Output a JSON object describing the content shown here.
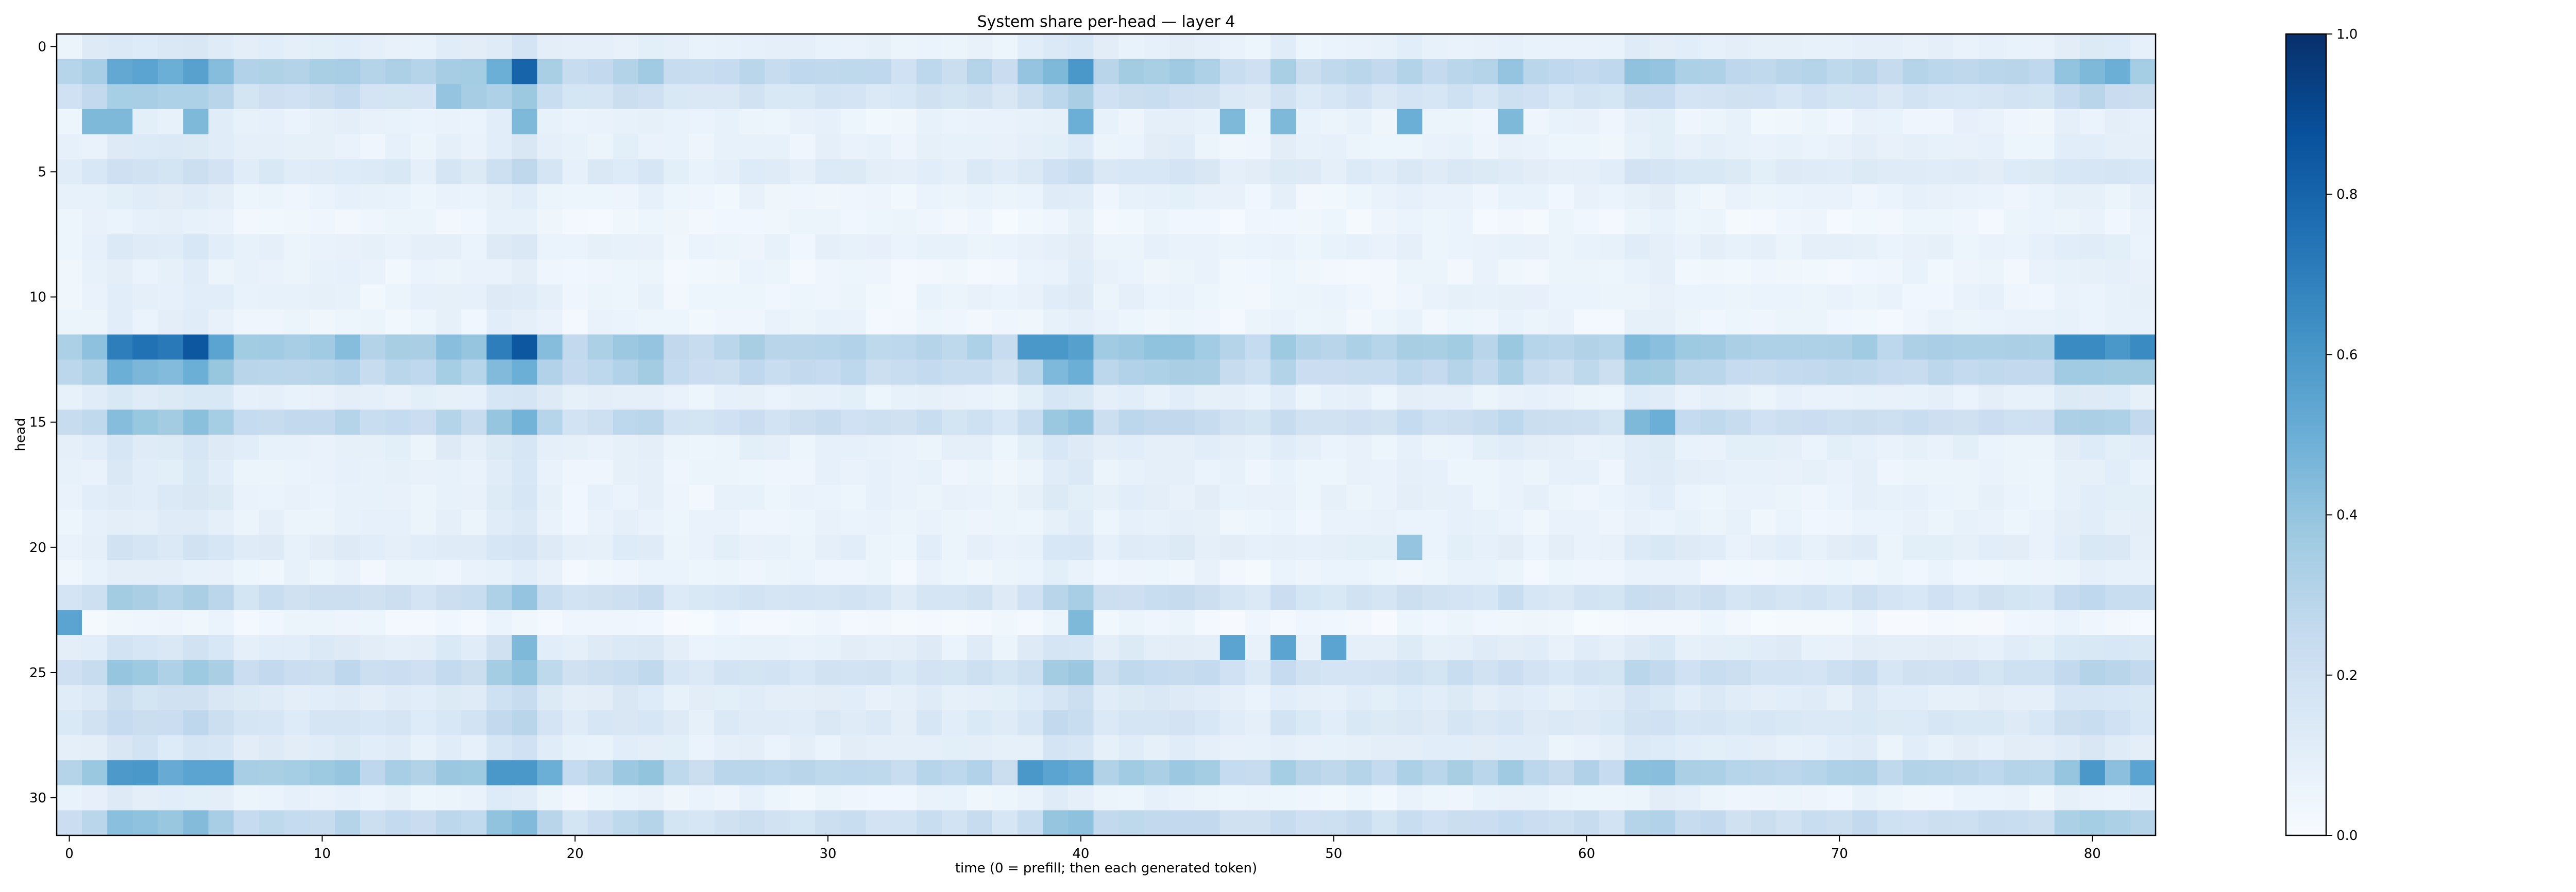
{
  "chart_data": {
    "type": "heatmap",
    "title": "System share per-head — layer 4",
    "xlabel": "time (0 = prefill; then each generated token)",
    "ylabel": "head",
    "n_rows": 32,
    "n_cols": 83,
    "xlim": [
      -0.5,
      82.5
    ],
    "ylim": [
      31.5,
      -0.5
    ],
    "x_ticks": [
      0,
      10,
      20,
      30,
      40,
      50,
      60,
      70,
      80
    ],
    "y_ticks": [
      0,
      5,
      10,
      15,
      20,
      25,
      30
    ],
    "colormap": "Blues",
    "colorbar": {
      "min": 0.0,
      "max": 1.0,
      "ticks": [
        0.0,
        0.2,
        0.4,
        0.6,
        0.8,
        1.0
      ],
      "tick_labels": [
        "0.0",
        "0.2",
        "0.4",
        "0.6",
        "0.8",
        "1.0"
      ]
    },
    "row_base": [
      0.08,
      0.28,
      0.18,
      0.06,
      0.07,
      0.12,
      0.06,
      0.04,
      0.07,
      0.05,
      0.06,
      0.05,
      0.32,
      0.26,
      0.08,
      0.22,
      0.08,
      0.07,
      0.07,
      0.06,
      0.09,
      0.05,
      0.18,
      0.03,
      0.1,
      0.2,
      0.11,
      0.14,
      0.09,
      0.3,
      0.06,
      0.22
    ],
    "col_factor": [
      1.0,
      1.3,
      1.9,
      1.8,
      1.7,
      1.9,
      1.6,
      1.1,
      1.2,
      1.1,
      1.2,
      1.3,
      1.0,
      1.1,
      1.0,
      1.3,
      1.2,
      1.8,
      2.1,
      1.3,
      0.9,
      1.0,
      1.2,
      1.3,
      0.9,
      0.8,
      0.9,
      1.0,
      0.9,
      0.9,
      1.0,
      1.0,
      0.9,
      0.8,
      1.0,
      0.9,
      1.0,
      0.8,
      1.1,
      1.7,
      1.8,
      1.1,
      1.2,
      1.2,
      1.3,
      1.2,
      0.9,
      0.8,
      1.2,
      0.9,
      0.9,
      1.0,
      0.9,
      1.1,
      1.0,
      1.1,
      1.0,
      1.2,
      1.0,
      0.9,
      1.0,
      0.9,
      1.4,
      1.4,
      1.1,
      1.1,
      1.0,
      1.0,
      1.0,
      1.0,
      1.0,
      1.1,
      0.9,
      1.0,
      1.0,
      1.0,
      1.0,
      1.0,
      1.0,
      1.4,
      1.5,
      1.4,
      1.3
    ],
    "hotspots": [
      {
        "row": 1,
        "col": 3,
        "value": 0.55
      },
      {
        "row": 1,
        "col": 4,
        "value": 0.5
      },
      {
        "row": 1,
        "col": 15,
        "value": 0.35
      },
      {
        "row": 1,
        "col": 17,
        "value": 0.5
      },
      {
        "row": 1,
        "col": 18,
        "value": 0.8
      },
      {
        "row": 1,
        "col": 38,
        "value": 0.4
      },
      {
        "row": 1,
        "col": 40,
        "value": 0.6
      },
      {
        "row": 1,
        "col": 57,
        "value": 0.4
      },
      {
        "row": 1,
        "col": 63,
        "value": 0.4
      },
      {
        "row": 1,
        "col": 80,
        "value": 0.45
      },
      {
        "row": 1,
        "col": 81,
        "value": 0.5
      },
      {
        "row": 2,
        "col": 15,
        "value": 0.4
      },
      {
        "row": 2,
        "col": 16,
        "value": 0.35
      },
      {
        "row": 3,
        "col": 1,
        "value": 0.45
      },
      {
        "row": 3,
        "col": 2,
        "value": 0.45
      },
      {
        "row": 3,
        "col": 5,
        "value": 0.45
      },
      {
        "row": 3,
        "col": 18,
        "value": 0.45
      },
      {
        "row": 3,
        "col": 40,
        "value": 0.5
      },
      {
        "row": 3,
        "col": 46,
        "value": 0.45
      },
      {
        "row": 3,
        "col": 48,
        "value": 0.45
      },
      {
        "row": 3,
        "col": 53,
        "value": 0.5
      },
      {
        "row": 3,
        "col": 57,
        "value": 0.45
      },
      {
        "row": 12,
        "col": 2,
        "value": 0.7
      },
      {
        "row": 12,
        "col": 3,
        "value": 0.75
      },
      {
        "row": 12,
        "col": 4,
        "value": 0.72
      },
      {
        "row": 12,
        "col": 5,
        "value": 0.85
      },
      {
        "row": 12,
        "col": 6,
        "value": 0.55
      },
      {
        "row": 12,
        "col": 17,
        "value": 0.7
      },
      {
        "row": 12,
        "col": 18,
        "value": 0.85
      },
      {
        "row": 12,
        "col": 38,
        "value": 0.6
      },
      {
        "row": 12,
        "col": 39,
        "value": 0.6
      },
      {
        "row": 12,
        "col": 79,
        "value": 0.65
      },
      {
        "row": 12,
        "col": 80,
        "value": 0.65
      },
      {
        "row": 12,
        "col": 81,
        "value": 0.6
      },
      {
        "row": 12,
        "col": 82,
        "value": 0.65
      },
      {
        "row": 13,
        "col": 2,
        "value": 0.5
      },
      {
        "row": 13,
        "col": 5,
        "value": 0.5
      },
      {
        "row": 13,
        "col": 18,
        "value": 0.5
      },
      {
        "row": 13,
        "col": 40,
        "value": 0.5
      },
      {
        "row": 15,
        "col": 62,
        "value": 0.45
      },
      {
        "row": 15,
        "col": 63,
        "value": 0.5
      },
      {
        "row": 20,
        "col": 53,
        "value": 0.4
      },
      {
        "row": 23,
        "col": 0,
        "value": 0.55
      },
      {
        "row": 23,
        "col": 40,
        "value": 0.45
      },
      {
        "row": 24,
        "col": 18,
        "value": 0.45
      },
      {
        "row": 24,
        "col": 46,
        "value": 0.55
      },
      {
        "row": 24,
        "col": 48,
        "value": 0.55
      },
      {
        "row": 24,
        "col": 50,
        "value": 0.55
      },
      {
        "row": 29,
        "col": 3,
        "value": 0.6
      },
      {
        "row": 29,
        "col": 5,
        "value": 0.55
      },
      {
        "row": 29,
        "col": 6,
        "value": 0.55
      },
      {
        "row": 29,
        "col": 17,
        "value": 0.6
      },
      {
        "row": 29,
        "col": 18,
        "value": 0.6
      },
      {
        "row": 29,
        "col": 19,
        "value": 0.5
      },
      {
        "row": 29,
        "col": 38,
        "value": 0.6
      },
      {
        "row": 29,
        "col": 39,
        "value": 0.55
      },
      {
        "row": 29,
        "col": 80,
        "value": 0.6
      },
      {
        "row": 29,
        "col": 82,
        "value": 0.55
      }
    ]
  }
}
